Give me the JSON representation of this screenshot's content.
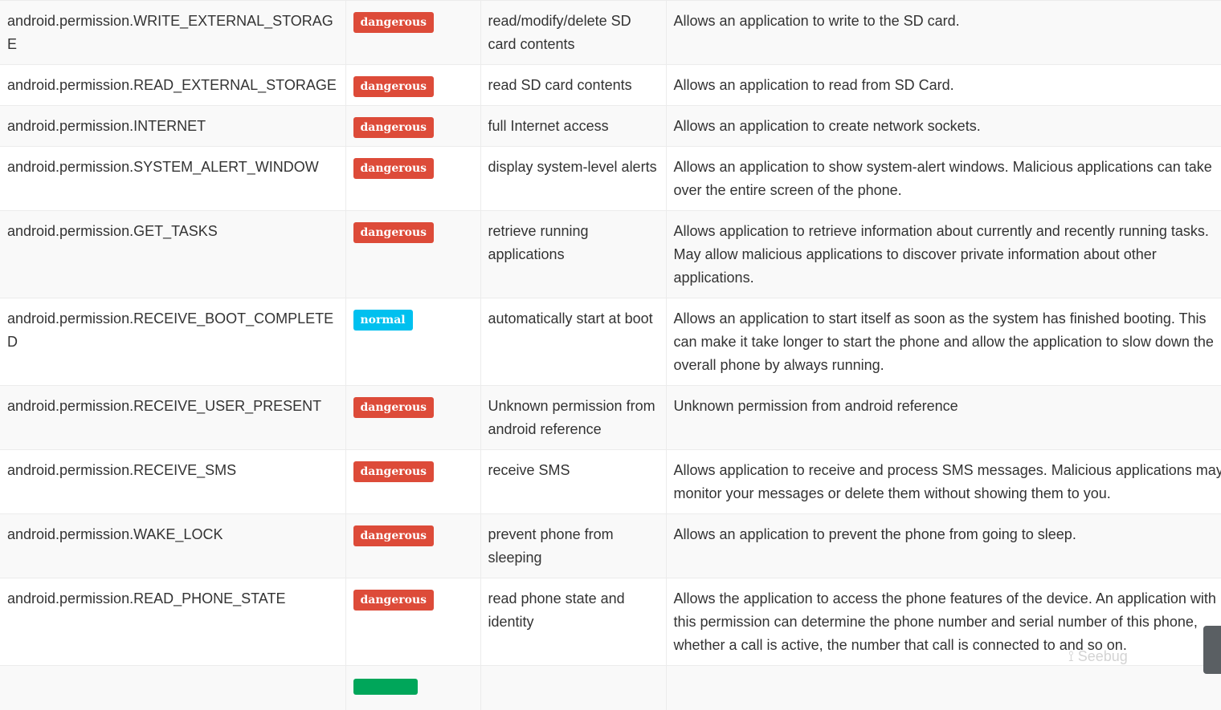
{
  "colors": {
    "dangerous": "#dd4b39",
    "normal": "#00c0ef",
    "signature": "#00a65a"
  },
  "rows": [
    {
      "permission": "android.permission.WRITE_EXTERNAL_STORAGE",
      "status": "dangerous",
      "info": "read/modify/delete SD card contents",
      "description": "Allows an application to write to the SD card."
    },
    {
      "permission": "android.permission.READ_EXTERNAL_STORAGE",
      "status": "dangerous",
      "info": "read SD card contents",
      "description": "Allows an application to read from SD Card."
    },
    {
      "permission": "android.permission.INTERNET",
      "status": "dangerous",
      "info": "full Internet access",
      "description": "Allows an application to create network sockets."
    },
    {
      "permission": "android.permission.SYSTEM_ALERT_WINDOW",
      "status": "dangerous",
      "info": "display system-level alerts",
      "description": "Allows an application to show system-alert windows. Malicious applications can take over the entire screen of the phone."
    },
    {
      "permission": "android.permission.GET_TASKS",
      "status": "dangerous",
      "info": "retrieve running applications",
      "description": "Allows application to retrieve information about currently and recently running tasks. May allow malicious applications to discover private information about other applications."
    },
    {
      "permission": "android.permission.RECEIVE_BOOT_COMPLETED",
      "status": "normal",
      "info": "automatically start at boot",
      "description": "Allows an application to start itself as soon as the system has finished booting. This can make it take longer to start the phone and allow the application to slow down the overall phone by always running."
    },
    {
      "permission": "android.permission.RECEIVE_USER_PRESENT",
      "status": "dangerous",
      "info": "Unknown permission from android reference",
      "description": "Unknown permission from android reference"
    },
    {
      "permission": "android.permission.RECEIVE_SMS",
      "status": "dangerous",
      "info": "receive SMS",
      "description": "Allows application to receive and process SMS messages. Malicious applications may monitor your messages or delete them without showing them to you."
    },
    {
      "permission": "android.permission.WAKE_LOCK",
      "status": "dangerous",
      "info": "prevent phone from sleeping",
      "description": "Allows an application to prevent the phone from going to sleep."
    },
    {
      "permission": "android.permission.READ_PHONE_STATE",
      "status": "dangerous",
      "info": "read phone state and identity",
      "description": "Allows the application to access the phone features of the device. An application with this permission can determine the phone number and serial number of this phone, whether a call is active, the number that call is connected to and so on."
    }
  ],
  "watermark": "Seebug"
}
